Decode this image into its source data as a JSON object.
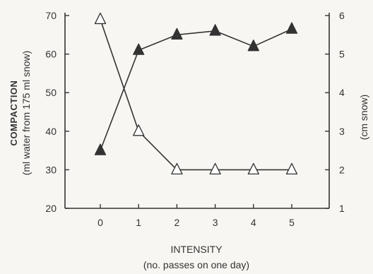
{
  "chart_data": {
    "type": "line",
    "x": [
      0,
      1,
      2,
      3,
      4,
      5
    ],
    "xlabel": "INTENSITY",
    "xlabel_sub": "(no. passes on one day)",
    "ylabel_left": "COMPACTION",
    "ylabel_left_sub": "(ml water from 175 ml snow)",
    "ylabel_right": "(cm snow)",
    "ylim_left": [
      20,
      70
    ],
    "ylim_right": [
      1,
      6
    ],
    "yticks_left": [
      20,
      30,
      40,
      50,
      60,
      70
    ],
    "yticks_right": [
      1,
      2,
      3,
      4,
      5,
      6
    ],
    "grid": false,
    "series": [
      {
        "marker": "filled-triangle",
        "axis": "left",
        "values": [
          35,
          61,
          65,
          66,
          62,
          66.5
        ],
        "color": "#333333"
      },
      {
        "marker": "open-triangle",
        "axis": "right",
        "values": [
          5.9,
          3.0,
          2.0,
          2.0,
          2.0,
          2.0
        ],
        "color": "#333333"
      }
    ]
  }
}
